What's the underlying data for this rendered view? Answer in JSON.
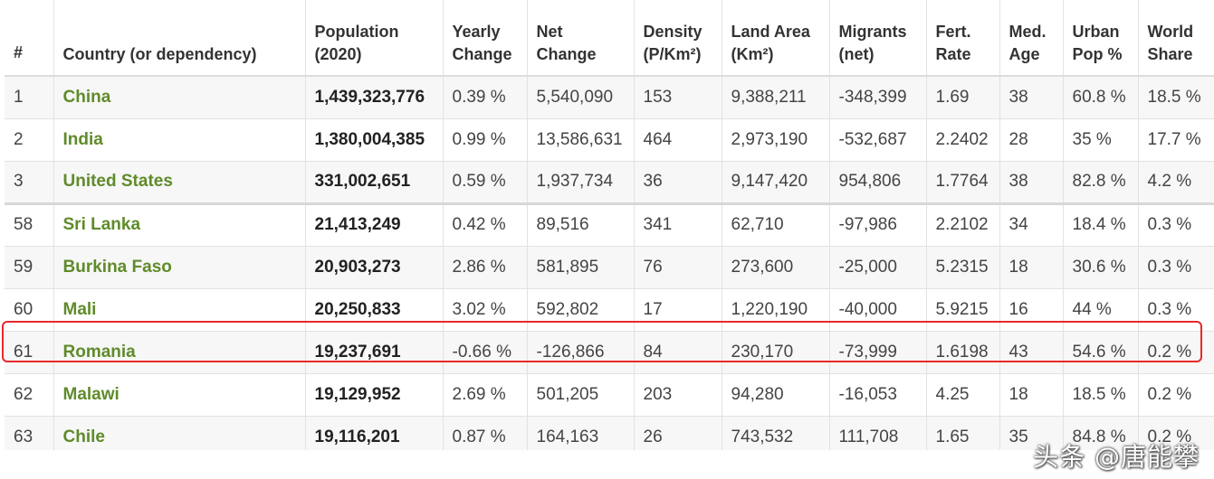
{
  "table": {
    "headers": {
      "rank": "#",
      "country": "Country (or dependency)",
      "population": "Population (2020)",
      "yearly_change": "Yearly Change",
      "net_change": "Net Change",
      "density": "Density (P/Km²)",
      "land_area": "Land Area (Km²)",
      "migrants": "Migrants (net)",
      "fert_rate": "Fert. Rate",
      "med_age": "Med. Age",
      "urban_pop": "Urban Pop %",
      "world_share": "World Share"
    },
    "rows": [
      {
        "rank": "1",
        "country": "China",
        "population": "1,439,323,776",
        "yearly_change": "0.39 %",
        "net_change": "5,540,090",
        "density": "153",
        "land_area": "9,388,211",
        "migrants": "-348,399",
        "fert_rate": "1.69",
        "med_age": "38",
        "urban_pop": "60.8 %",
        "world_share": "18.5 %"
      },
      {
        "rank": "2",
        "country": "India",
        "population": "1,380,004,385",
        "yearly_change": "0.99 %",
        "net_change": "13,586,631",
        "density": "464",
        "land_area": "2,973,190",
        "migrants": "-532,687",
        "fert_rate": "2.2402",
        "med_age": "28",
        "urban_pop": "35 %",
        "world_share": "17.7 %"
      },
      {
        "rank": "3",
        "country": "United States",
        "population": "331,002,651",
        "yearly_change": "0.59 %",
        "net_change": "1,937,734",
        "density": "36",
        "land_area": "9,147,420",
        "migrants": "954,806",
        "fert_rate": "1.7764",
        "med_age": "38",
        "urban_pop": "82.8 %",
        "world_share": "4.2 %"
      },
      {
        "rank": "58",
        "country": "Sri Lanka",
        "population": "21,413,249",
        "yearly_change": "0.42 %",
        "net_change": "89,516",
        "density": "341",
        "land_area": "62,710",
        "migrants": "-97,986",
        "fert_rate": "2.2102",
        "med_age": "34",
        "urban_pop": "18.4 %",
        "world_share": "0.3 %"
      },
      {
        "rank": "59",
        "country": "Burkina Faso",
        "population": "20,903,273",
        "yearly_change": "2.86 %",
        "net_change": "581,895",
        "density": "76",
        "land_area": "273,600",
        "migrants": "-25,000",
        "fert_rate": "5.2315",
        "med_age": "18",
        "urban_pop": "30.6 %",
        "world_share": "0.3 %"
      },
      {
        "rank": "60",
        "country": "Mali",
        "population": "20,250,833",
        "yearly_change": "3.02 %",
        "net_change": "592,802",
        "density": "17",
        "land_area": "1,220,190",
        "migrants": "-40,000",
        "fert_rate": "5.9215",
        "med_age": "16",
        "urban_pop": "44 %",
        "world_share": "0.3 %"
      },
      {
        "rank": "61",
        "country": "Romania",
        "population": "19,237,691",
        "yearly_change": "-0.66 %",
        "net_change": "-126,866",
        "density": "84",
        "land_area": "230,170",
        "migrants": "-73,999",
        "fert_rate": "1.6198",
        "med_age": "43",
        "urban_pop": "54.6 %",
        "world_share": "0.2 %"
      },
      {
        "rank": "62",
        "country": "Malawi",
        "population": "19,129,952",
        "yearly_change": "2.69 %",
        "net_change": "501,205",
        "density": "203",
        "land_area": "94,280",
        "migrants": "-16,053",
        "fert_rate": "4.25",
        "med_age": "18",
        "urban_pop": "18.5 %",
        "world_share": "0.2 %"
      },
      {
        "rank": "63",
        "country": "Chile",
        "population": "19,116,201",
        "yearly_change": "0.87 %",
        "net_change": "164,163",
        "density": "26",
        "land_area": "743,532",
        "migrants": "111,708",
        "fert_rate": "1.65",
        "med_age": "35",
        "urban_pop": "84.8 %",
        "world_share": "0.2 %"
      }
    ],
    "highlighted_country": "Romania"
  },
  "watermark": "头条 @唐能攀",
  "colors": {
    "country_link": "#5f8b2a",
    "highlight_border": "#e8282b",
    "stripe": "#f7f7f7"
  }
}
